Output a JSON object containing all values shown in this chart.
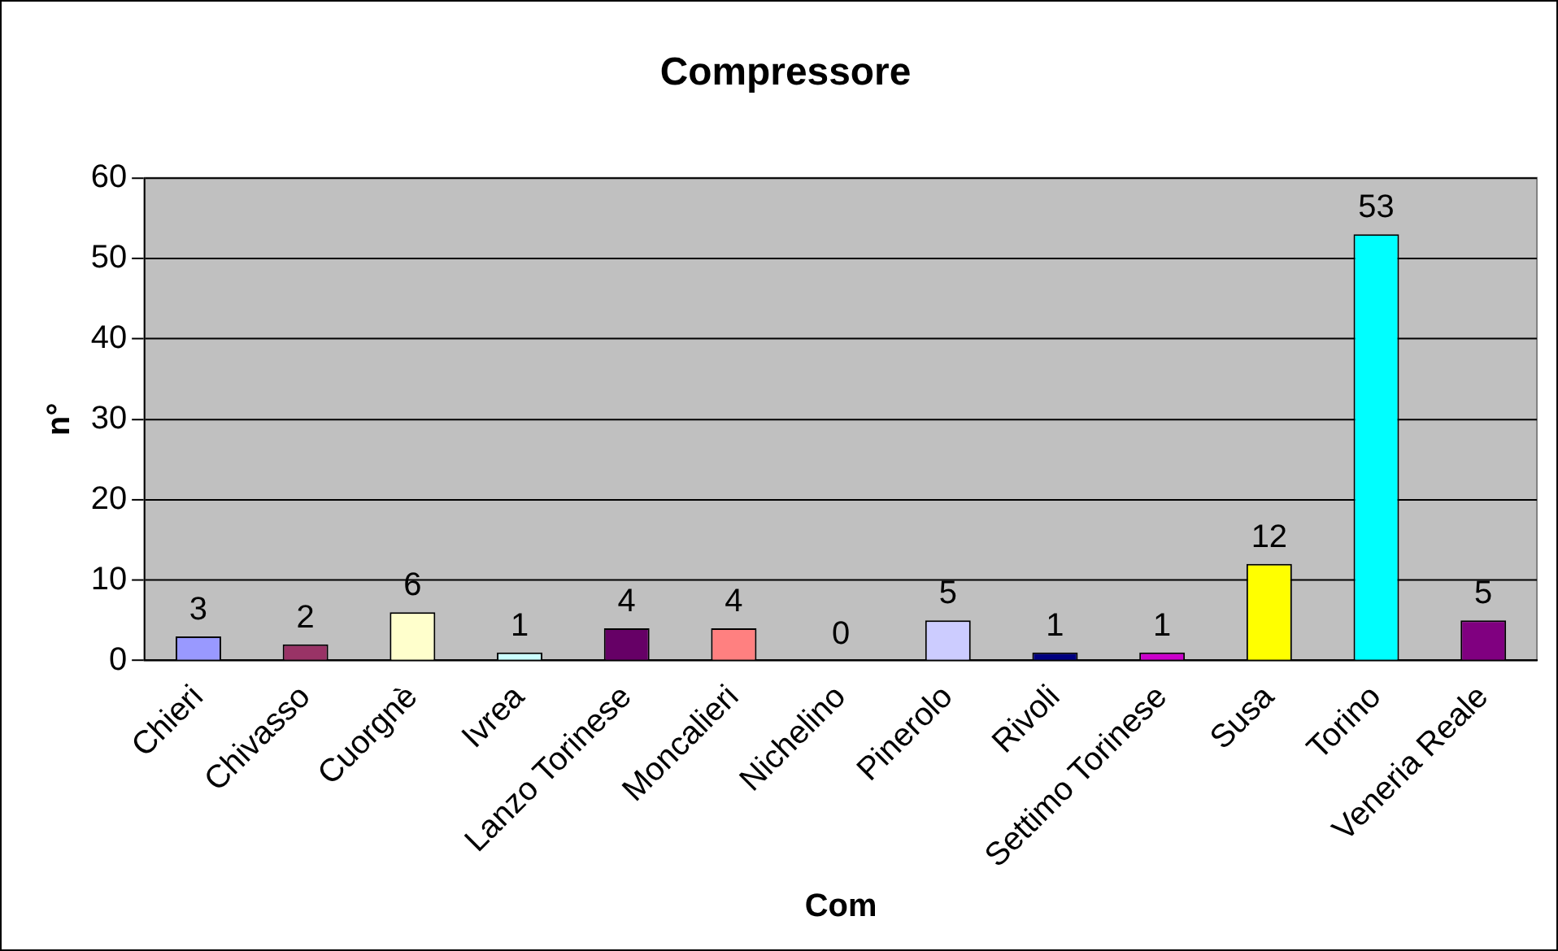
{
  "chart_data": {
    "type": "bar",
    "title": "Compressore",
    "xlabel": "Com",
    "ylabel": "n°",
    "categories": [
      "Chieri",
      "Chivasso",
      "Cuorgnè",
      "Ivrea",
      "Lanzo Torinese",
      "Moncalieri",
      "Nichelino",
      "Pinerolo",
      "Rivoli",
      "Settimo Torinese",
      "Susa",
      "Torino",
      "Veneria Reale"
    ],
    "values": [
      3,
      2,
      6,
      1,
      4,
      4,
      0,
      5,
      1,
      1,
      12,
      53,
      5
    ],
    "colors": [
      "#9999ff",
      "#993366",
      "#ffffcc",
      "#ccffff",
      "#660066",
      "#ff8080",
      "#0066cc",
      "#ccccff",
      "#000080",
      "#cc00cc",
      "#ffff00",
      "#00ffff",
      "#800080"
    ],
    "ylim": [
      0,
      60
    ],
    "yticks": [
      0,
      10,
      20,
      30,
      40,
      50,
      60
    ],
    "grid": "y",
    "data_labels": true,
    "legend": false
  }
}
